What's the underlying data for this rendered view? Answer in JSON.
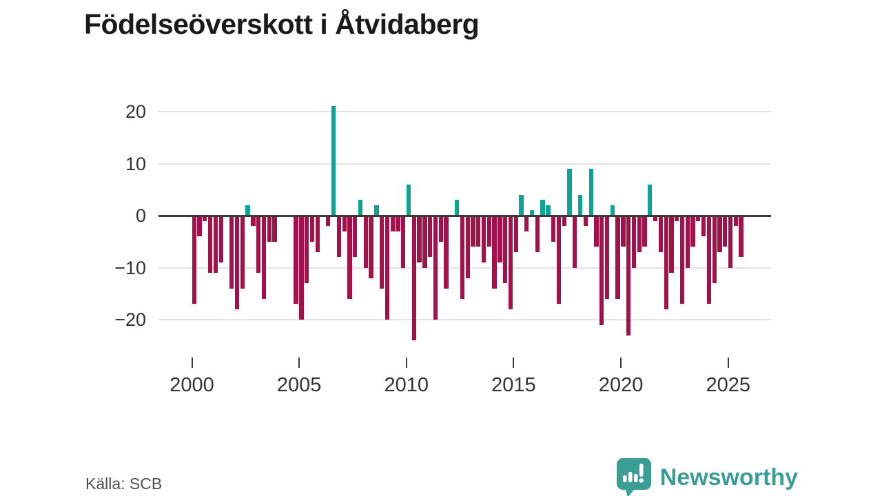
{
  "title": "Födelseöverskott i Åtvidaberg",
  "source_note": "Källa: SCB",
  "brand": {
    "name": "Newsworthy",
    "logo_icon": "speech-bubble-bar-chart",
    "color": "#3b9e96"
  },
  "colors": {
    "positive_bar": "#0ba29a",
    "negative_bar": "#a3114b",
    "zero_axis": "#3a3a3a",
    "gridline": "#e4e4e4",
    "tick_text": "#333333"
  },
  "chart_data": {
    "type": "bar",
    "title": "Födelseöverskott i Åtvidaberg",
    "frequency": "quarterly",
    "start_year": 2000,
    "end": "2025 Q3",
    "x_tick_years": [
      2000,
      2005,
      2010,
      2015,
      2020,
      2025
    ],
    "x_tick_labels": [
      "2000",
      "2005",
      "2010",
      "2015",
      "2020",
      "2025"
    ],
    "y_ticks": [
      20,
      10,
      0,
      -10,
      -20
    ],
    "y_tick_labels": [
      "20",
      "10",
      "0",
      "−10",
      "−20"
    ],
    "ylim": [
      -26,
      23
    ],
    "grid": "horizontal",
    "legend": "none",
    "values_note": "quarterly birth surplus; 0 means no bar drawn for that quarter",
    "values": [
      -17,
      -4,
      -1,
      -11,
      -11,
      -9,
      0,
      -14,
      -18,
      -14,
      2,
      -2,
      -11,
      -16,
      -5,
      -5,
      0,
      0,
      0,
      -17,
      -20,
      -13,
      -5,
      -7,
      0,
      -2,
      21,
      -8,
      -3,
      -16,
      -8,
      3,
      -10,
      -12,
      2,
      -14,
      -20,
      -3,
      -3,
      -10,
      6,
      -24,
      -9,
      -10,
      -8,
      -20,
      -5,
      -14,
      0,
      3,
      -16,
      -12,
      -6,
      -6,
      -9,
      -6,
      -14,
      -9,
      -13,
      -18,
      -7,
      4,
      -3,
      1,
      -7,
      3,
      2,
      -5,
      -17,
      -2,
      9,
      -10,
      4,
      -2,
      9,
      -6,
      -21,
      -16,
      2,
      -16,
      -6,
      -23,
      -10,
      -7,
      -6,
      6,
      -1,
      -7,
      -18,
      -11,
      -1,
      -17,
      -10,
      -6,
      -1,
      -4,
      -17,
      -13,
      -7,
      -6,
      -10,
      -2,
      -8
    ]
  }
}
